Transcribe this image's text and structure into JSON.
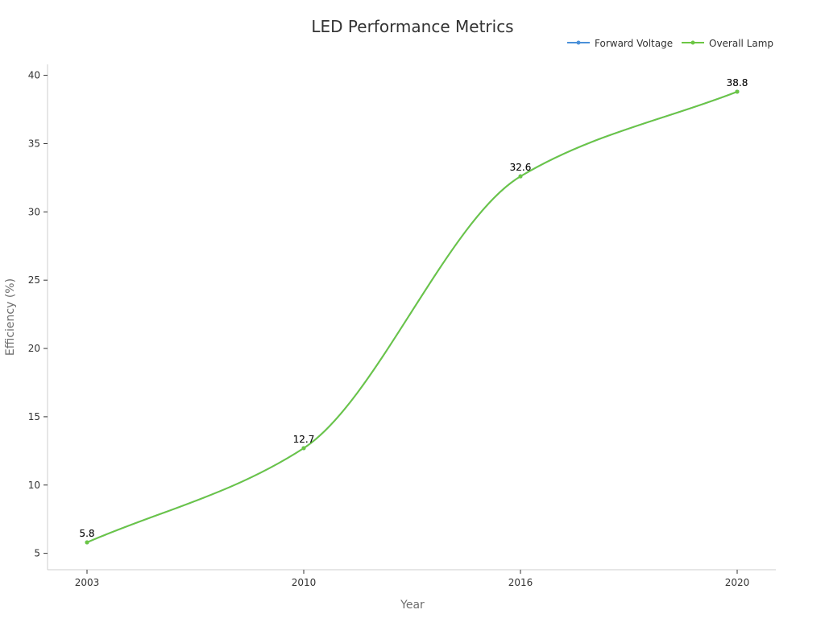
{
  "chart_data": {
    "type": "line",
    "title": "LED Performance Metrics",
    "xlabel": "Year",
    "ylabel": "Efficiency (%)",
    "categories": [
      "2003",
      "2010",
      "2016",
      "2020"
    ],
    "y_ticks": [
      5,
      10,
      15,
      20,
      25,
      30,
      35,
      40
    ],
    "ylim": [
      3.8,
      40.8
    ],
    "grid": false,
    "legend_position": "top-right",
    "series": [
      {
        "name": "Forward Voltage",
        "color": "#4a90d9",
        "values": [
          5.8,
          12.7,
          32.6,
          38.8
        ],
        "labels": [
          "5.8",
          "12.7",
          "32.6",
          "38.8"
        ]
      },
      {
        "name": "Overall Lamp",
        "color": "#6cc644",
        "values": [
          5.8,
          12.7,
          32.6,
          38.8
        ],
        "labels": [
          "5.8",
          "12.7",
          "32.6",
          "38.8"
        ]
      }
    ]
  }
}
